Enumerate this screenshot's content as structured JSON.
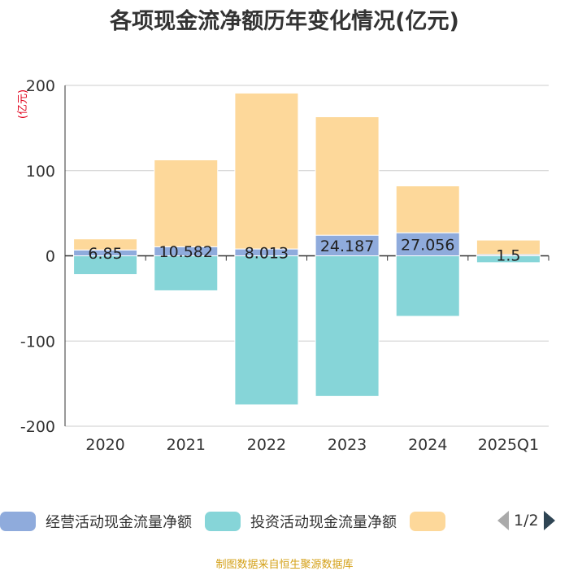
{
  "title": "各项现金流净额历年变化情况(亿元)",
  "source": "制图数据来自恒生聚源数据库",
  "colors": {
    "operating": "#8fabdc",
    "investing": "#86d5d8",
    "financing": "#fdd89a",
    "axis_label_unit": "#e0001b",
    "source_text": "#d4a017"
  },
  "legend": {
    "items": [
      {
        "label": "经营活动现金流量净额",
        "color": "#8fabdc"
      },
      {
        "label": "投资活动现金流量净额",
        "color": "#86d5d8"
      },
      {
        "label": "",
        "color": "#fdd89a"
      }
    ],
    "page": "1/2"
  },
  "chart_data": {
    "type": "bar",
    "stacked": true,
    "title": "各项现金流净额历年变化情况(亿元)",
    "ylabel": "(亿元)",
    "xlabel": "",
    "ylim": [
      -200,
      200
    ],
    "yticks": [
      200,
      100,
      0,
      -100,
      -200
    ],
    "categories": [
      "2020",
      "2021",
      "2022",
      "2023",
      "2024",
      "2025Q1"
    ],
    "series": [
      {
        "name": "经营活动现金流量净额",
        "color": "#8fabdc",
        "values": [
          6.85,
          10.582,
          8.013,
          24.187,
          27.056,
          1.5
        ],
        "labels": [
          "6.85",
          "10.582",
          "8.013",
          "24.187",
          "27.056",
          "1.5"
        ]
      },
      {
        "name": "投资活动现金流量净额",
        "color": "#86d5d8",
        "values": [
          -22,
          -41,
          -175,
          -165,
          -71,
          -8
        ]
      },
      {
        "name": "",
        "color": "#fdd89a",
        "values": [
          13,
          102,
          183,
          139,
          55,
          17
        ]
      }
    ]
  }
}
